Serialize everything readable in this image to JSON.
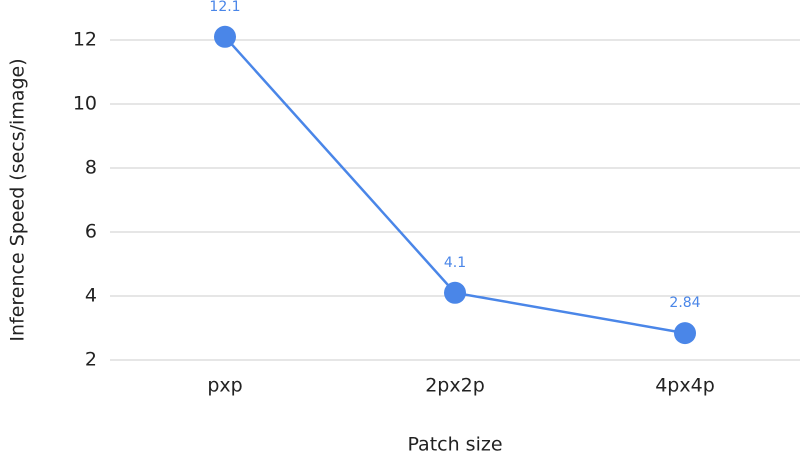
{
  "chart_data": {
    "type": "line",
    "x_label": "Patch size",
    "y_label": "Inference Speed (secs/image)",
    "categories": [
      "pxp",
      "2px2p",
      "4px4p"
    ],
    "series": [
      {
        "name": "Inference Speed",
        "color": "#4a86e8",
        "values": [
          12.1,
          4.1,
          2.84
        ]
      }
    ],
    "ylim": [
      2,
      13
    ],
    "yticks": [
      2,
      4,
      6,
      8,
      10,
      12
    ],
    "grid": true
  }
}
